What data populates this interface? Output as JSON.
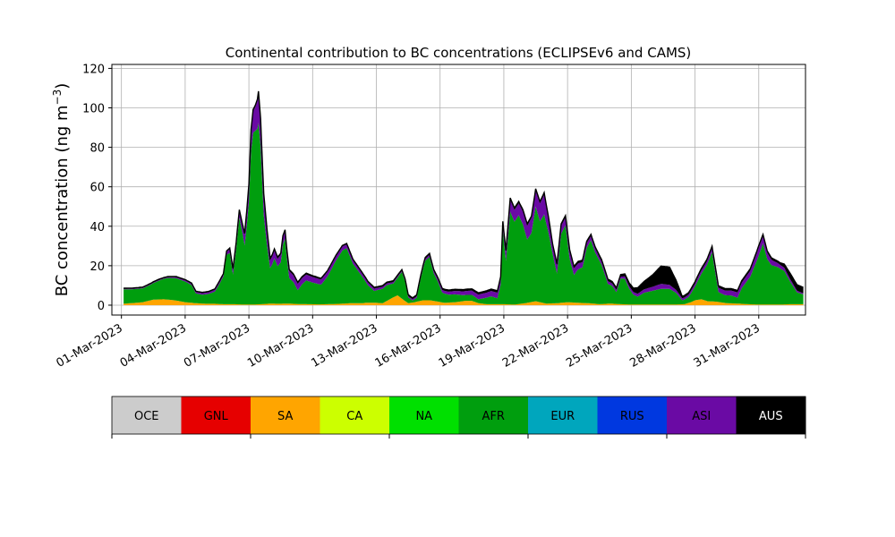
{
  "chart_data": {
    "type": "area",
    "stacked": true,
    "title": "Continental contribution to BC concentrations (ECLIPSEv6 and CAMS)",
    "ylabel_text": "BC concentration (ng m",
    "ylabel_sup": "−3",
    "ylabel_close": ")",
    "xlabel": "",
    "ylim": [
      -5,
      122
    ],
    "yticks": [
      0,
      20,
      40,
      60,
      80,
      100,
      120
    ],
    "xlim_day": [
      -0.45,
      32.2
    ],
    "xticks": [
      {
        "day": 0,
        "label": "01-Mar-2023"
      },
      {
        "day": 3,
        "label": "04-Mar-2023"
      },
      {
        "day": 6,
        "label": "07-Mar-2023"
      },
      {
        "day": 9,
        "label": "10-Mar-2023"
      },
      {
        "day": 12,
        "label": "13-Mar-2023"
      },
      {
        "day": 15,
        "label": "16-Mar-2023"
      },
      {
        "day": 18,
        "label": "19-Mar-2023"
      },
      {
        "day": 21,
        "label": "22-Mar-2023"
      },
      {
        "day": 24,
        "label": "25-Mar-2023"
      },
      {
        "day": 27,
        "label": "28-Mar-2023"
      },
      {
        "day": 30,
        "label": "31-Mar-2023"
      }
    ],
    "grid": true,
    "series": [
      {
        "name": "SA",
        "color": "#ffa500",
        "points": [
          [
            0.1,
            0.7
          ],
          [
            1,
            1.5
          ],
          [
            1.5,
            2.8
          ],
          [
            2,
            3
          ],
          [
            2.5,
            2.5
          ],
          [
            3,
            1.5
          ],
          [
            3.5,
            1
          ],
          [
            4,
            0.7
          ],
          [
            4.4,
            0.7
          ],
          [
            4.8,
            0.5
          ],
          [
            5.3,
            0.5
          ],
          [
            5.8,
            0.3
          ],
          [
            6.2,
            0.3
          ],
          [
            6.6,
            0.5
          ],
          [
            7,
            0.8
          ],
          [
            7.4,
            0.7
          ],
          [
            7.8,
            0.8
          ],
          [
            8.3,
            0.6
          ],
          [
            8.8,
            0.5
          ],
          [
            9.3,
            0.4
          ],
          [
            9.7,
            0.5
          ],
          [
            10.3,
            0.7
          ],
          [
            10.8,
            1
          ],
          [
            11.3,
            1
          ],
          [
            11.5,
            1.2
          ],
          [
            11.7,
            1.2
          ],
          [
            12,
            1.2
          ],
          [
            12.3,
            1
          ],
          [
            12.8,
            4
          ],
          [
            13,
            5
          ],
          [
            13.3,
            2.5
          ],
          [
            13.5,
            1
          ],
          [
            13.8,
            1.5
          ],
          [
            14.2,
            2.5
          ],
          [
            14.5,
            2.5
          ],
          [
            14.8,
            2
          ],
          [
            15.2,
            1.2
          ],
          [
            15.7,
            1.5
          ],
          [
            16.2,
            2.2
          ],
          [
            16.5,
            2.2
          ],
          [
            16.8,
            1
          ],
          [
            17.2,
            0.5
          ],
          [
            17.5,
            0.5
          ],
          [
            18,
            0.5
          ],
          [
            18.5,
            0.3
          ],
          [
            19,
            1
          ],
          [
            19.5,
            2
          ],
          [
            20,
            0.8
          ],
          [
            20.5,
            1
          ],
          [
            21,
            1.5
          ],
          [
            21.5,
            1.2
          ],
          [
            22,
            1
          ],
          [
            22.5,
            0.5
          ],
          [
            23,
            0.8
          ],
          [
            23.5,
            0.5
          ],
          [
            24,
            0.3
          ],
          [
            24.5,
            0.3
          ],
          [
            25,
            0.3
          ],
          [
            25.5,
            0.3
          ],
          [
            26,
            0.3
          ],
          [
            26.5,
            0.5
          ],
          [
            26.8,
            1.5
          ],
          [
            27,
            2.5
          ],
          [
            27.3,
            3
          ],
          [
            27.6,
            2
          ],
          [
            28,
            1.8
          ],
          [
            28.5,
            1
          ],
          [
            29,
            0.8
          ],
          [
            29.5,
            0.5
          ],
          [
            30,
            0.3
          ],
          [
            30.5,
            0.3
          ],
          [
            31,
            0.3
          ],
          [
            31.5,
            0.5
          ],
          [
            31.9,
            0.5
          ]
        ]
      },
      {
        "name": "AFR",
        "color": "#009e0e",
        "points": [
          [
            0.1,
            7.3
          ],
          [
            0.5,
            7
          ],
          [
            1,
            7
          ],
          [
            1.4,
            8
          ],
          [
            1.8,
            9.7
          ],
          [
            2.2,
            11
          ],
          [
            2.6,
            11.3
          ],
          [
            3,
            10.5
          ],
          [
            3.3,
            9
          ],
          [
            3.5,
            5
          ],
          [
            3.8,
            4.5
          ],
          [
            4.1,
            5
          ],
          [
            4.4,
            6.2
          ],
          [
            4.6,
            10
          ],
          [
            4.8,
            14
          ],
          [
            4.95,
            25
          ],
          [
            5.1,
            26
          ],
          [
            5.25,
            15
          ],
          [
            5.4,
            28
          ],
          [
            5.55,
            44
          ],
          [
            5.7,
            36
          ],
          [
            5.8,
            30
          ],
          [
            5.9,
            40
          ],
          [
            6.0,
            52
          ],
          [
            6.1,
            78
          ],
          [
            6.2,
            87
          ],
          [
            6.3,
            88
          ],
          [
            6.4,
            89
          ],
          [
            6.45,
            92
          ],
          [
            6.55,
            80
          ],
          [
            6.7,
            45
          ],
          [
            6.85,
            30
          ],
          [
            7.0,
            18
          ],
          [
            7.1,
            20
          ],
          [
            7.2,
            23
          ],
          [
            7.35,
            19
          ],
          [
            7.5,
            21
          ],
          [
            7.6,
            30
          ],
          [
            7.7,
            33
          ],
          [
            7.8,
            22
          ],
          [
            7.9,
            13
          ],
          [
            8.1,
            11
          ],
          [
            8.3,
            7
          ],
          [
            8.5,
            10
          ],
          [
            8.7,
            12
          ],
          [
            9.0,
            11
          ],
          [
            9.4,
            10
          ],
          [
            9.7,
            14
          ],
          [
            10.1,
            22
          ],
          [
            10.4,
            27
          ],
          [
            10.6,
            28
          ],
          [
            10.9,
            20
          ],
          [
            11.3,
            14
          ],
          [
            11.6,
            9
          ],
          [
            11.9,
            6
          ],
          [
            12.2,
            7
          ],
          [
            12.5,
            8
          ],
          [
            12.8,
            7
          ],
          [
            13.0,
            9
          ],
          [
            13.2,
            13.5
          ],
          [
            13.35,
            10
          ],
          [
            13.5,
            3
          ],
          [
            13.7,
            1
          ],
          [
            13.9,
            2
          ],
          [
            14.1,
            12
          ],
          [
            14.3,
            20
          ],
          [
            14.5,
            22
          ],
          [
            14.7,
            14
          ],
          [
            14.9,
            10
          ],
          [
            15.1,
            5
          ],
          [
            15.4,
            4
          ],
          [
            15.7,
            4
          ],
          [
            16.1,
            3
          ],
          [
            16.5,
            3
          ],
          [
            16.8,
            2
          ],
          [
            17.1,
            3
          ],
          [
            17.4,
            4
          ],
          [
            17.7,
            3
          ],
          [
            17.85,
            10
          ],
          [
            17.95,
            38
          ],
          [
            18.1,
            22
          ],
          [
            18.3,
            47
          ],
          [
            18.5,
            42
          ],
          [
            18.7,
            45
          ],
          [
            18.9,
            40
          ],
          [
            19.1,
            32
          ],
          [
            19.3,
            35
          ],
          [
            19.5,
            48
          ],
          [
            19.7,
            41
          ],
          [
            19.9,
            45
          ],
          [
            20.1,
            36
          ],
          [
            20.3,
            25
          ],
          [
            20.5,
            15
          ],
          [
            20.7,
            35
          ],
          [
            20.9,
            39
          ],
          [
            21.1,
            22
          ],
          [
            21.3,
            14
          ],
          [
            21.5,
            17
          ],
          [
            21.7,
            18
          ],
          [
            21.9,
            28
          ],
          [
            22.1,
            32
          ],
          [
            22.3,
            26
          ],
          [
            22.6,
            20
          ],
          [
            22.9,
            10
          ],
          [
            23.1,
            9
          ],
          [
            23.3,
            6
          ],
          [
            23.5,
            13
          ],
          [
            23.7,
            13
          ],
          [
            23.9,
            8
          ],
          [
            24.1,
            5
          ],
          [
            24.3,
            4
          ],
          [
            24.6,
            6
          ],
          [
            25.0,
            7
          ],
          [
            25.4,
            8
          ],
          [
            25.8,
            8
          ],
          [
            26.1,
            6
          ],
          [
            26.4,
            2
          ],
          [
            26.7,
            3
          ],
          [
            27.0,
            7
          ],
          [
            27.3,
            13
          ],
          [
            27.55,
            18
          ],
          [
            27.8,
            25
          ],
          [
            28.1,
            5
          ],
          [
            28.4,
            4
          ],
          [
            28.7,
            4
          ],
          [
            29.0,
            3
          ],
          [
            29.2,
            8
          ],
          [
            29.6,
            14
          ],
          [
            29.9,
            22
          ],
          [
            30.0,
            25
          ],
          [
            30.2,
            31
          ],
          [
            30.4,
            23
          ],
          [
            30.6,
            20
          ],
          [
            30.9,
            19
          ],
          [
            31.2,
            17
          ],
          [
            31.5,
            11
          ],
          [
            31.8,
            6
          ],
          [
            32.1,
            5
          ]
        ]
      },
      {
        "name": "ASI",
        "color": "#6a0aa4",
        "points": [
          [
            0.1,
            0.3
          ],
          [
            2,
            0.3
          ],
          [
            4.8,
            1
          ],
          [
            5.7,
            4
          ],
          [
            6.1,
            10
          ],
          [
            6.3,
            12
          ],
          [
            6.45,
            15
          ],
          [
            7,
            4
          ],
          [
            10.4,
            2
          ],
          [
            13.2,
            0.5
          ],
          [
            14.5,
            1
          ],
          [
            17.95,
            3
          ],
          [
            18.3,
            6
          ],
          [
            18.7,
            6
          ],
          [
            19.5,
            8
          ],
          [
            19.9,
            10
          ],
          [
            20.3,
            4
          ],
          [
            20.9,
            4
          ],
          [
            22.1,
            2
          ],
          [
            23.5,
            1
          ],
          [
            24.3,
            1.5
          ],
          [
            25.0,
            2
          ],
          [
            25.4,
            2.5
          ],
          [
            25.8,
            2
          ],
          [
            26.4,
            1
          ],
          [
            27.8,
            2
          ],
          [
            29.6,
            3
          ],
          [
            30.0,
            4
          ],
          [
            30.9,
            2
          ],
          [
            32.1,
            0.5
          ]
        ]
      },
      {
        "name": "AUS",
        "color": "#000000",
        "points": [
          [
            0.1,
            0.3
          ],
          [
            5.7,
            0.5
          ],
          [
            6.45,
            1
          ],
          [
            10.4,
            0.5
          ],
          [
            17.95,
            1
          ],
          [
            19.9,
            1
          ],
          [
            23.5,
            1
          ],
          [
            23.8,
            1.5
          ],
          [
            24.1,
            2
          ],
          [
            24.3,
            3
          ],
          [
            24.6,
            4
          ],
          [
            25.0,
            6
          ],
          [
            25.4,
            9
          ],
          [
            25.8,
            9
          ],
          [
            26.1,
            5
          ],
          [
            26.4,
            1
          ],
          [
            26.8,
            1
          ],
          [
            27.8,
            1
          ],
          [
            29.6,
            1
          ],
          [
            30.0,
            1
          ],
          [
            31.0,
            1
          ],
          [
            31.5,
            3
          ],
          [
            32.1,
            3
          ]
        ]
      }
    ]
  },
  "legend": {
    "items": [
      {
        "label": "OCE",
        "color": "#cccccc"
      },
      {
        "label": "GNL",
        "color": "#e60000"
      },
      {
        "label": "SA",
        "color": "#ffa500"
      },
      {
        "label": "CA",
        "color": "#ccff00"
      },
      {
        "label": "NA",
        "color": "#00e000"
      },
      {
        "label": "AFR",
        "color": "#009e0e"
      },
      {
        "label": "EUR",
        "color": "#00a6bd"
      },
      {
        "label": "RUS",
        "color": "#0038e0"
      },
      {
        "label": "ASI",
        "color": "#6a0aa4"
      },
      {
        "label": "AUS",
        "color": "#000000"
      }
    ]
  }
}
